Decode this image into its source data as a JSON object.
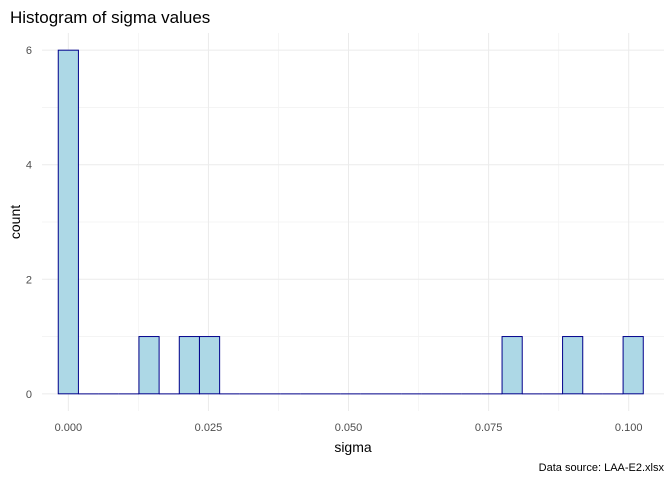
{
  "chart_data": {
    "type": "bar",
    "title": "Histogram of sigma values",
    "xlabel": "sigma",
    "ylabel": "count",
    "caption": "Data source: LAA-E2.xlsx",
    "bin_width": 0.0036,
    "bins": [
      {
        "center": 0.0,
        "count": 6
      },
      {
        "center": 0.0036,
        "count": 0
      },
      {
        "center": 0.0072,
        "count": 0
      },
      {
        "center": 0.0108,
        "count": 0
      },
      {
        "center": 0.0144,
        "count": 1
      },
      {
        "center": 0.018,
        "count": 0
      },
      {
        "center": 0.0216,
        "count": 1
      },
      {
        "center": 0.0252,
        "count": 1
      },
      {
        "center": 0.0288,
        "count": 0
      },
      {
        "center": 0.0324,
        "count": 0
      },
      {
        "center": 0.036,
        "count": 0
      },
      {
        "center": 0.0396,
        "count": 0
      },
      {
        "center": 0.0432,
        "count": 0
      },
      {
        "center": 0.0468,
        "count": 0
      },
      {
        "center": 0.0504,
        "count": 0
      },
      {
        "center": 0.054,
        "count": 0
      },
      {
        "center": 0.0576,
        "count": 0
      },
      {
        "center": 0.0612,
        "count": 0
      },
      {
        "center": 0.0648,
        "count": 0
      },
      {
        "center": 0.0684,
        "count": 0
      },
      {
        "center": 0.072,
        "count": 0
      },
      {
        "center": 0.0756,
        "count": 0
      },
      {
        "center": 0.0792,
        "count": 1
      },
      {
        "center": 0.0828,
        "count": 0
      },
      {
        "center": 0.0864,
        "count": 0
      },
      {
        "center": 0.09,
        "count": 1
      },
      {
        "center": 0.0936,
        "count": 0
      },
      {
        "center": 0.0972,
        "count": 0
      },
      {
        "center": 0.1008,
        "count": 1
      }
    ],
    "x_ticks": [
      {
        "value": 0.0,
        "label": "0.000"
      },
      {
        "value": 0.025,
        "label": "0.025"
      },
      {
        "value": 0.05,
        "label": "0.050"
      },
      {
        "value": 0.075,
        "label": "0.075"
      },
      {
        "value": 0.1,
        "label": "0.100"
      }
    ],
    "y_ticks": [
      {
        "value": 0,
        "label": "0"
      },
      {
        "value": 2,
        "label": "2"
      },
      {
        "value": 4,
        "label": "4"
      },
      {
        "value": 6,
        "label": "6"
      }
    ],
    "xlim": [
      -0.0047,
      0.1063
    ],
    "ylim": [
      -0.3,
      6.3
    ],
    "grid": true,
    "colors": {
      "fill": "#add8e6",
      "outline": "#00008b",
      "grid": "#ebebeb"
    }
  }
}
